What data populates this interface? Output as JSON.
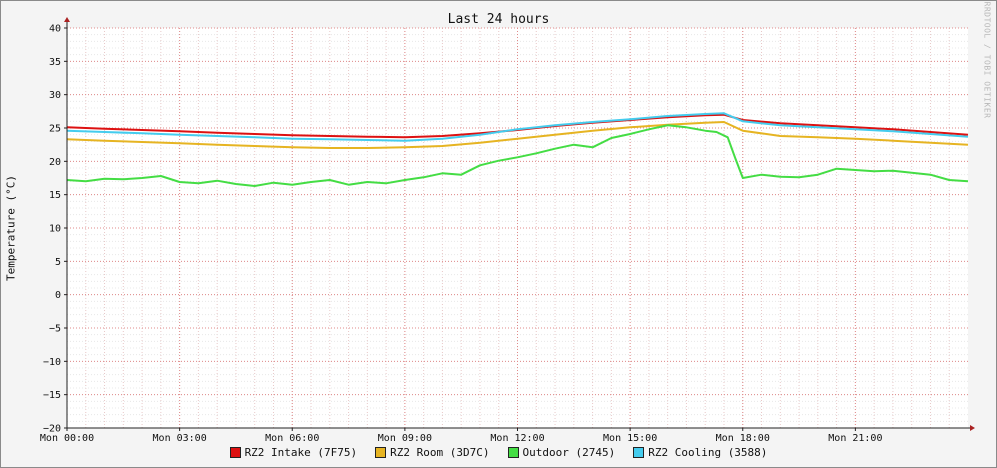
{
  "chart_data": {
    "type": "line",
    "title": "Last 24 hours",
    "ylabel": "Temperature (°C)",
    "xlabel": "",
    "watermark": "RRDTOOL / TOBI OETIKER",
    "ylim": [
      -20,
      40
    ],
    "xlim": [
      0,
      24
    ],
    "yticks": [
      40,
      35,
      30,
      25,
      20,
      15,
      10,
      5,
      0,
      -5,
      -10,
      -15,
      -20
    ],
    "xticks": [
      {
        "x": 0,
        "label": "Mon 00:00"
      },
      {
        "x": 3,
        "label": "Mon 03:00"
      },
      {
        "x": 6,
        "label": "Mon 06:00"
      },
      {
        "x": 9,
        "label": "Mon 09:00"
      },
      {
        "x": 12,
        "label": "Mon 12:00"
      },
      {
        "x": 15,
        "label": "Mon 15:00"
      },
      {
        "x": 18,
        "label": "Mon 18:00"
      },
      {
        "x": 21,
        "label": "Mon 21:00"
      }
    ],
    "grid": true,
    "legend_position": "bottom",
    "series": [
      {
        "name": "RZ2 Intake (7F75)",
        "color": "#dd1111",
        "x": [
          0,
          1,
          2,
          3,
          4,
          5,
          6,
          7,
          8,
          9,
          10,
          11,
          12,
          13,
          14,
          15,
          16,
          17,
          17.5,
          18,
          19,
          20,
          21,
          22,
          23,
          24
        ],
        "y": [
          25.1,
          24.9,
          24.7,
          24.5,
          24.3,
          24.1,
          23.9,
          23.8,
          23.7,
          23.6,
          23.8,
          24.2,
          24.7,
          25.3,
          25.8,
          26.2,
          26.6,
          26.9,
          27.0,
          26.2,
          25.7,
          25.4,
          25.1,
          24.8,
          24.4,
          24.0
        ]
      },
      {
        "name": "RZ2 Room (3D7C)",
        "color": "#e6b422",
        "x": [
          0,
          1,
          2,
          3,
          4,
          5,
          6,
          7,
          8,
          9,
          10,
          11,
          12,
          13,
          14,
          15,
          16,
          17,
          17.5,
          18,
          19,
          20,
          21,
          22,
          23,
          24
        ],
        "y": [
          23.3,
          23.1,
          22.9,
          22.7,
          22.5,
          22.3,
          22.1,
          22.0,
          22.0,
          22.1,
          22.3,
          22.8,
          23.4,
          24.0,
          24.6,
          25.1,
          25.5,
          25.8,
          25.9,
          24.6,
          23.8,
          23.6,
          23.4,
          23.1,
          22.8,
          22.5
        ]
      },
      {
        "name": "Outdoor (2745)",
        "color": "#44dd44",
        "x": [
          0,
          0.5,
          1,
          1.5,
          2,
          2.5,
          3,
          3.5,
          4,
          4.5,
          5,
          5.5,
          6,
          6.5,
          7,
          7.5,
          8,
          8.5,
          9,
          9.5,
          10,
          10.5,
          11,
          11.5,
          12,
          12.5,
          13,
          13.5,
          14,
          14.5,
          15,
          15.5,
          16,
          16.5,
          17,
          17.3,
          17.6,
          17.8,
          18,
          18.5,
          19,
          19.5,
          20,
          20.5,
          21,
          21.5,
          22,
          22.5,
          23,
          23.5,
          24
        ],
        "y": [
          17.2,
          17.0,
          17.4,
          17.3,
          17.5,
          17.8,
          16.9,
          16.7,
          17.1,
          16.6,
          16.3,
          16.8,
          16.5,
          16.9,
          17.2,
          16.5,
          16.9,
          16.7,
          17.2,
          17.6,
          18.2,
          18.0,
          19.4,
          20.1,
          20.6,
          21.2,
          21.9,
          22.5,
          22.1,
          23.5,
          24.1,
          24.8,
          25.4,
          25.1,
          24.6,
          24.4,
          23.6,
          20.5,
          17.5,
          18.0,
          17.7,
          17.6,
          18.0,
          18.9,
          18.7,
          18.5,
          18.6,
          18.3,
          18.0,
          17.2,
          17.0
        ]
      },
      {
        "name": "RZ2 Cooling (3588)",
        "color": "#44ccee",
        "x": [
          0,
          1,
          2,
          3,
          4,
          5,
          6,
          7,
          8,
          9,
          10,
          11,
          12,
          13,
          14,
          15,
          16,
          17,
          17.5,
          18,
          19,
          20,
          21,
          22,
          23,
          24
        ],
        "y": [
          24.6,
          24.4,
          24.2,
          24.0,
          23.8,
          23.6,
          23.4,
          23.3,
          23.2,
          23.1,
          23.4,
          24.0,
          24.8,
          25.4,
          25.9,
          26.3,
          26.8,
          27.1,
          27.2,
          26.0,
          25.4,
          25.1,
          24.8,
          24.5,
          24.1,
          23.7
        ]
      }
    ]
  }
}
